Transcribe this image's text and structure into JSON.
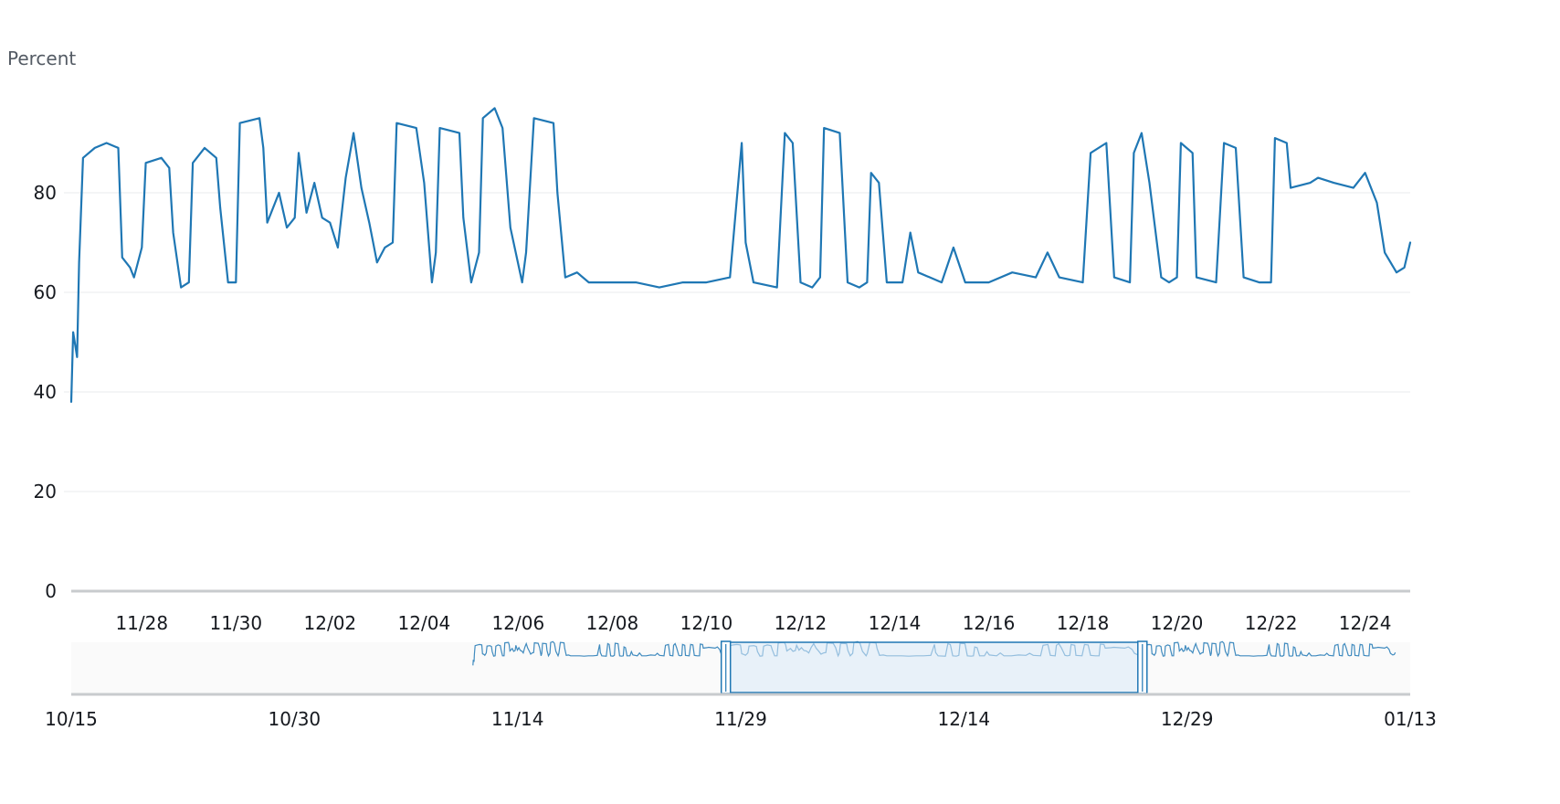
{
  "chart_data": {
    "type": "line",
    "ylabel": "Percent",
    "xlabel": "",
    "ylim": [
      0,
      100
    ],
    "yticks": [
      0,
      20,
      40,
      60,
      80
    ],
    "grid": true,
    "legend": "none",
    "main_x_ticks": [
      "11/28",
      "11/30",
      "12/02",
      "12/04",
      "12/06",
      "12/08",
      "12/10",
      "12/12",
      "12/14",
      "12/16",
      "12/18",
      "12/20",
      "12/22",
      "12/24"
    ],
    "main_x_range": [
      "11/26 12:00",
      "12/24 23:00"
    ],
    "series": [
      {
        "values": [
          [
            "11/26 12:00",
            38
          ],
          [
            "11/26 13:00",
            52
          ],
          [
            "11/26 15:00",
            47
          ],
          [
            "11/26 16:00",
            66
          ],
          [
            "11/26 18:00",
            87
          ],
          [
            "11/27 00:00",
            89
          ],
          [
            "11/27 06:00",
            90
          ],
          [
            "11/27 12:00",
            89
          ],
          [
            "11/27 14:00",
            67
          ],
          [
            "11/27 18:00",
            65
          ],
          [
            "11/27 20:00",
            63
          ],
          [
            "11/28 00:00",
            69
          ],
          [
            "11/28 02:00",
            86
          ],
          [
            "11/28 10:00",
            87
          ],
          [
            "11/28 14:00",
            85
          ],
          [
            "11/28 16:00",
            72
          ],
          [
            "11/28 20:00",
            61
          ],
          [
            "11/29 00:00",
            62
          ],
          [
            "11/29 02:00",
            86
          ],
          [
            "11/29 08:00",
            89
          ],
          [
            "11/29 14:00",
            87
          ],
          [
            "11/29 16:00",
            77
          ],
          [
            "11/29 20:00",
            62
          ],
          [
            "11/30 00:00",
            62
          ],
          [
            "11/30 02:00",
            94
          ],
          [
            "11/30 12:00",
            95
          ],
          [
            "11/30 14:00",
            89
          ],
          [
            "11/30 16:00",
            74
          ],
          [
            "11/30 22:00",
            80
          ],
          [
            "12/01 02:00",
            73
          ],
          [
            "12/01 06:00",
            75
          ],
          [
            "12/01 08:00",
            88
          ],
          [
            "12/01 12:00",
            76
          ],
          [
            "12/01 16:00",
            82
          ],
          [
            "12/01 20:00",
            75
          ],
          [
            "12/02 00:00",
            74
          ],
          [
            "12/02 04:00",
            69
          ],
          [
            "12/02 08:00",
            83
          ],
          [
            "12/02 12:00",
            92
          ],
          [
            "12/02 16:00",
            81
          ],
          [
            "12/02 20:00",
            74
          ],
          [
            "12/03 00:00",
            66
          ],
          [
            "12/03 04:00",
            69
          ],
          [
            "12/03 08:00",
            70
          ],
          [
            "12/03 10:00",
            94
          ],
          [
            "12/03 20:00",
            93
          ],
          [
            "12/04 00:00",
            82
          ],
          [
            "12/04 04:00",
            62
          ],
          [
            "12/04 06:00",
            68
          ],
          [
            "12/04 08:00",
            93
          ],
          [
            "12/04 18:00",
            92
          ],
          [
            "12/04 20:00",
            75
          ],
          [
            "12/05 00:00",
            62
          ],
          [
            "12/05 04:00",
            68
          ],
          [
            "12/05 06:00",
            95
          ],
          [
            "12/05 12:00",
            97
          ],
          [
            "12/05 16:00",
            93
          ],
          [
            "12/05 20:00",
            73
          ],
          [
            "12/06 02:00",
            62
          ],
          [
            "12/06 04:00",
            68
          ],
          [
            "12/06 08:00",
            95
          ],
          [
            "12/06 18:00",
            94
          ],
          [
            "12/06 20:00",
            80
          ],
          [
            "12/07 00:00",
            63
          ],
          [
            "12/07 06:00",
            64
          ],
          [
            "12/07 12:00",
            62
          ],
          [
            "12/08 00:00",
            62
          ],
          [
            "12/08 12:00",
            62
          ],
          [
            "12/09 00:00",
            61
          ],
          [
            "12/09 12:00",
            62
          ],
          [
            "12/10 00:00",
            62
          ],
          [
            "12/10 12:00",
            63
          ],
          [
            "12/10 18:00",
            90
          ],
          [
            "12/10 20:00",
            70
          ],
          [
            "12/11 00:00",
            62
          ],
          [
            "12/11 12:00",
            61
          ],
          [
            "12/11 16:00",
            92
          ],
          [
            "12/11 20:00",
            90
          ],
          [
            "12/12 00:00",
            62
          ],
          [
            "12/12 06:00",
            61
          ],
          [
            "12/12 10:00",
            63
          ],
          [
            "12/12 12:00",
            93
          ],
          [
            "12/12 20:00",
            92
          ],
          [
            "12/13 00:00",
            62
          ],
          [
            "12/13 06:00",
            61
          ],
          [
            "12/13 10:00",
            62
          ],
          [
            "12/13 12:00",
            84
          ],
          [
            "12/13 16:00",
            82
          ],
          [
            "12/13 20:00",
            62
          ],
          [
            "12/14 04:00",
            62
          ],
          [
            "12/14 08:00",
            72
          ],
          [
            "12/14 12:00",
            64
          ],
          [
            "12/15 00:00",
            62
          ],
          [
            "12/15 06:00",
            69
          ],
          [
            "12/15 12:00",
            62
          ],
          [
            "12/16 00:00",
            62
          ],
          [
            "12/16 12:00",
            64
          ],
          [
            "12/17 00:00",
            63
          ],
          [
            "12/17 06:00",
            68
          ],
          [
            "12/17 12:00",
            63
          ],
          [
            "12/18 00:00",
            62
          ],
          [
            "12/18 04:00",
            88
          ],
          [
            "12/18 12:00",
            90
          ],
          [
            "12/18 16:00",
            63
          ],
          [
            "12/19 00:00",
            62
          ],
          [
            "12/19 02:00",
            88
          ],
          [
            "12/19 06:00",
            92
          ],
          [
            "12/19 10:00",
            82
          ],
          [
            "12/19 16:00",
            63
          ],
          [
            "12/19 20:00",
            62
          ],
          [
            "12/20 00:00",
            63
          ],
          [
            "12/20 02:00",
            90
          ],
          [
            "12/20 08:00",
            88
          ],
          [
            "12/20 10:00",
            63
          ],
          [
            "12/20 20:00",
            62
          ],
          [
            "12/21 00:00",
            90
          ],
          [
            "12/21 06:00",
            89
          ],
          [
            "12/21 10:00",
            63
          ],
          [
            "12/21 18:00",
            62
          ],
          [
            "12/22 00:00",
            62
          ],
          [
            "12/22 02:00",
            91
          ],
          [
            "12/22 08:00",
            90
          ],
          [
            "12/22 10:00",
            81
          ],
          [
            "12/22 20:00",
            82
          ],
          [
            "12/23 00:00",
            83
          ],
          [
            "12/23 08:00",
            82
          ],
          [
            "12/23 18:00",
            81
          ],
          [
            "12/24 00:00",
            84
          ],
          [
            "12/24 06:00",
            78
          ],
          [
            "12/24 10:00",
            68
          ],
          [
            "12/24 16:00",
            64
          ],
          [
            "12/24 20:00",
            65
          ],
          [
            "12/24 23:00",
            70
          ]
        ]
      }
    ]
  },
  "navigator": {
    "x_ticks": [
      "10/15",
      "10/30",
      "11/14",
      "11/29",
      "12/14",
      "12/29",
      "01/13"
    ],
    "x_range": [
      "10/15",
      "01/13"
    ],
    "data_start": "11/11",
    "data_end": "01/12",
    "window_start": "11/28",
    "window_end": "12/26"
  },
  "colors": {
    "series": "#1f77b4",
    "grid": "#e9ebed",
    "axis": "#c8cbce",
    "window_fill": "#d9eaf7",
    "navigator_bg": "#fafafa",
    "text": "#16191f",
    "unit_text": "#545b64"
  }
}
